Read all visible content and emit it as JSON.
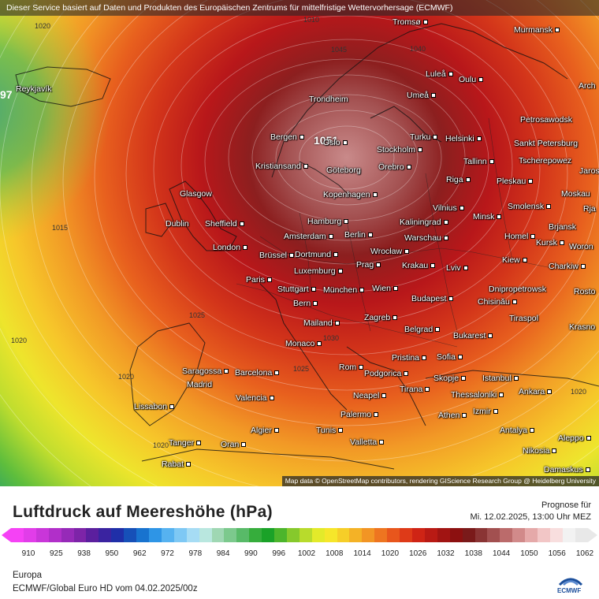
{
  "banner": "Dieser Service basiert auf Daten und Produkten des Europäischen Zentrums für mittelfristige Wettervorhersage (ECMWF)",
  "attribution": "Map data © OpenStreetMap contributors, rendering GIScience Research Group @ Heidelberg University",
  "title": "Luftdruck auf Meereshöhe (hPa)",
  "forecast_label": "Prognose für",
  "forecast_date": "Mi. 12.02.2025, 13:00 Uhr MEZ",
  "region": "Europa",
  "source": "ECMWF/Global Euro HD vom  04.02.2025/00z",
  "logo_text": "ECMWF",
  "high_label": "1051",
  "legend_ticks": [
    "910",
    "925",
    "938",
    "950",
    "962",
    "972",
    "978",
    "984",
    "990",
    "996",
    "1002",
    "1008",
    "1014",
    "1020",
    "1026",
    "1032",
    "1038",
    "1044",
    "1050",
    "1056",
    "1062"
  ],
  "legend_colors": [
    "#f542f5",
    "#e13de9",
    "#c936d9",
    "#b12fc9",
    "#962ab8",
    "#7d24a8",
    "#5b1f9e",
    "#3a23a0",
    "#1f2fa8",
    "#1650b8",
    "#1873cf",
    "#2e95e6",
    "#56b2f0",
    "#7ec8f4",
    "#a6dcf4",
    "#b9e7df",
    "#9fd7b3",
    "#7cc98d",
    "#58ba68",
    "#36ad3c",
    "#1aa228",
    "#4cb52c",
    "#86c92c",
    "#b8db2c",
    "#e3ea2a",
    "#f6e62a",
    "#f6ce28",
    "#f4b226",
    "#f29524",
    "#ee7520",
    "#e8561c",
    "#de3a18",
    "#cf2415",
    "#b91a14",
    "#a11412",
    "#8c1010",
    "#7a1a1a",
    "#8a3434",
    "#a25050",
    "#bb6b6b",
    "#d18a8a",
    "#e5a9a9",
    "#f2c6c6",
    "#f8dede",
    "#f2f2f2",
    "#e8e8e8"
  ],
  "isobar_labels": [
    {
      "text": "1020"
    },
    {
      "text": "1015"
    },
    {
      "text": "1025"
    },
    {
      "text": "1020"
    },
    {
      "text": "1020"
    },
    {
      "text": "1025"
    },
    {
      "text": "1030"
    },
    {
      "text": "1045"
    },
    {
      "text": "1040"
    },
    {
      "text": "1020"
    },
    {
      "text": "1020"
    },
    {
      "text": "1010"
    },
    {
      "text": "97"
    }
  ],
  "cities": [
    {
      "name": "Reykjavík"
    },
    {
      "name": "Tromsø"
    },
    {
      "name": "Murmansk"
    },
    {
      "name": "Luleå"
    },
    {
      "name": "Oulu"
    },
    {
      "name": "Arch"
    },
    {
      "name": "Trondheim"
    },
    {
      "name": "Umeå"
    },
    {
      "name": "Petrosawodsk"
    },
    {
      "name": "Bergen"
    },
    {
      "name": "Oslo"
    },
    {
      "name": "Turku"
    },
    {
      "name": "Helsinki"
    },
    {
      "name": "Sankt Petersburg"
    },
    {
      "name": "Stockholm"
    },
    {
      "name": "Tallinn"
    },
    {
      "name": "Tscherepowez"
    },
    {
      "name": "Kristiansand"
    },
    {
      "name": "Göteborg"
    },
    {
      "name": "Örebro"
    },
    {
      "name": "Jaros"
    },
    {
      "name": "Riga"
    },
    {
      "name": "Pleskau"
    },
    {
      "name": "Glasgow"
    },
    {
      "name": "Kopenhagen"
    },
    {
      "name": "Moskau"
    },
    {
      "name": "Vilnius"
    },
    {
      "name": "Smolensk"
    },
    {
      "name": "Rja"
    },
    {
      "name": "Hamburg"
    },
    {
      "name": "Minsk"
    },
    {
      "name": "Dublin"
    },
    {
      "name": "Sheffield"
    },
    {
      "name": "Kaliningrad"
    },
    {
      "name": "Brjansk"
    },
    {
      "name": "Amsterdam"
    },
    {
      "name": "Berlin"
    },
    {
      "name": "Warschau"
    },
    {
      "name": "Homel"
    },
    {
      "name": "London"
    },
    {
      "name": "Kursk"
    },
    {
      "name": "Woron"
    },
    {
      "name": "Brüssel"
    },
    {
      "name": "Dortmund"
    },
    {
      "name": "Wrocław"
    },
    {
      "name": "Kiew"
    },
    {
      "name": "Prag"
    },
    {
      "name": "Krakau"
    },
    {
      "name": "Charkiw"
    },
    {
      "name": "Paris"
    },
    {
      "name": "Luxemburg"
    },
    {
      "name": "Lviv"
    },
    {
      "name": "Stuttgart"
    },
    {
      "name": "München"
    },
    {
      "name": "Wien"
    },
    {
      "name": "Dnipropetrowsk"
    },
    {
      "name": "Rosto"
    },
    {
      "name": "Bern"
    },
    {
      "name": "Budapest"
    },
    {
      "name": "Chisinău"
    },
    {
      "name": "Tiraspol"
    },
    {
      "name": "Mailand"
    },
    {
      "name": "Zagreb"
    },
    {
      "name": "Krasno"
    },
    {
      "name": "Monaco"
    },
    {
      "name": "Belgrad"
    },
    {
      "name": "Bukarest"
    },
    {
      "name": "Saragossa"
    },
    {
      "name": "Barcelona"
    },
    {
      "name": "Rom"
    },
    {
      "name": "Pristina"
    },
    {
      "name": "Sofia"
    },
    {
      "name": "Podgorica"
    },
    {
      "name": "Madrid"
    },
    {
      "name": "Skopje"
    },
    {
      "name": "Istanbul"
    },
    {
      "name": "Tirana"
    },
    {
      "name": "Neapel"
    },
    {
      "name": "Thessaloniki"
    },
    {
      "name": "Ankara"
    },
    {
      "name": "Valencia"
    },
    {
      "name": "Lissabon"
    },
    {
      "name": "Palermo"
    },
    {
      "name": "Izmir"
    },
    {
      "name": "Athen"
    },
    {
      "name": "Algier"
    },
    {
      "name": "Tunis"
    },
    {
      "name": "Antalya"
    },
    {
      "name": "Aleppo"
    },
    {
      "name": "Tanger"
    },
    {
      "name": "Oran"
    },
    {
      "name": "Valletta"
    },
    {
      "name": "Nikosia"
    },
    {
      "name": "Rabat"
    },
    {
      "name": "Damaskus"
    }
  ]
}
